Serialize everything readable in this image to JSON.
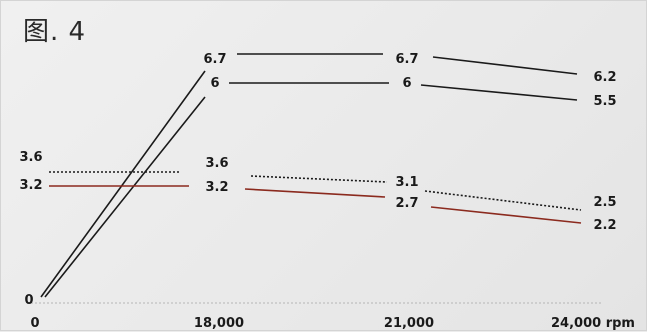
{
  "title": "图. 4",
  "chart_data": {
    "type": "line",
    "title": "图. 4",
    "x": [
      0,
      18000,
      21000,
      24000
    ],
    "x_tick_labels": [
      "0",
      "18,000",
      "21,000",
      "24,000 rpm"
    ],
    "ylabel": "",
    "xlabel": "",
    "ylim": [
      0,
      7
    ],
    "grid": false,
    "legend": "none",
    "series": [
      {
        "style": "solid",
        "color": "#1a1a1a",
        "values": [
          0,
          6.7,
          6.7,
          6.2
        ],
        "labels": [
          "",
          "6.7",
          "6.7",
          "6.2"
        ]
      },
      {
        "style": "solid",
        "color": "#1a1a1a",
        "values": [
          0,
          6,
          6,
          5.5
        ],
        "labels": [
          "0",
          "6",
          "6",
          "5.5"
        ]
      },
      {
        "style": "dotted",
        "color": "#1a1a1a",
        "values": [
          3.6,
          3.6,
          3.1,
          2.5
        ],
        "labels": [
          "3.6",
          "3.6",
          "3.1",
          "2.5"
        ]
      },
      {
        "style": "solid",
        "color": "#8b2a1e",
        "values": [
          3.2,
          3.2,
          2.7,
          2.2
        ],
        "labels": [
          "3.2",
          "3.2",
          "2.7",
          "2.2"
        ]
      }
    ]
  }
}
